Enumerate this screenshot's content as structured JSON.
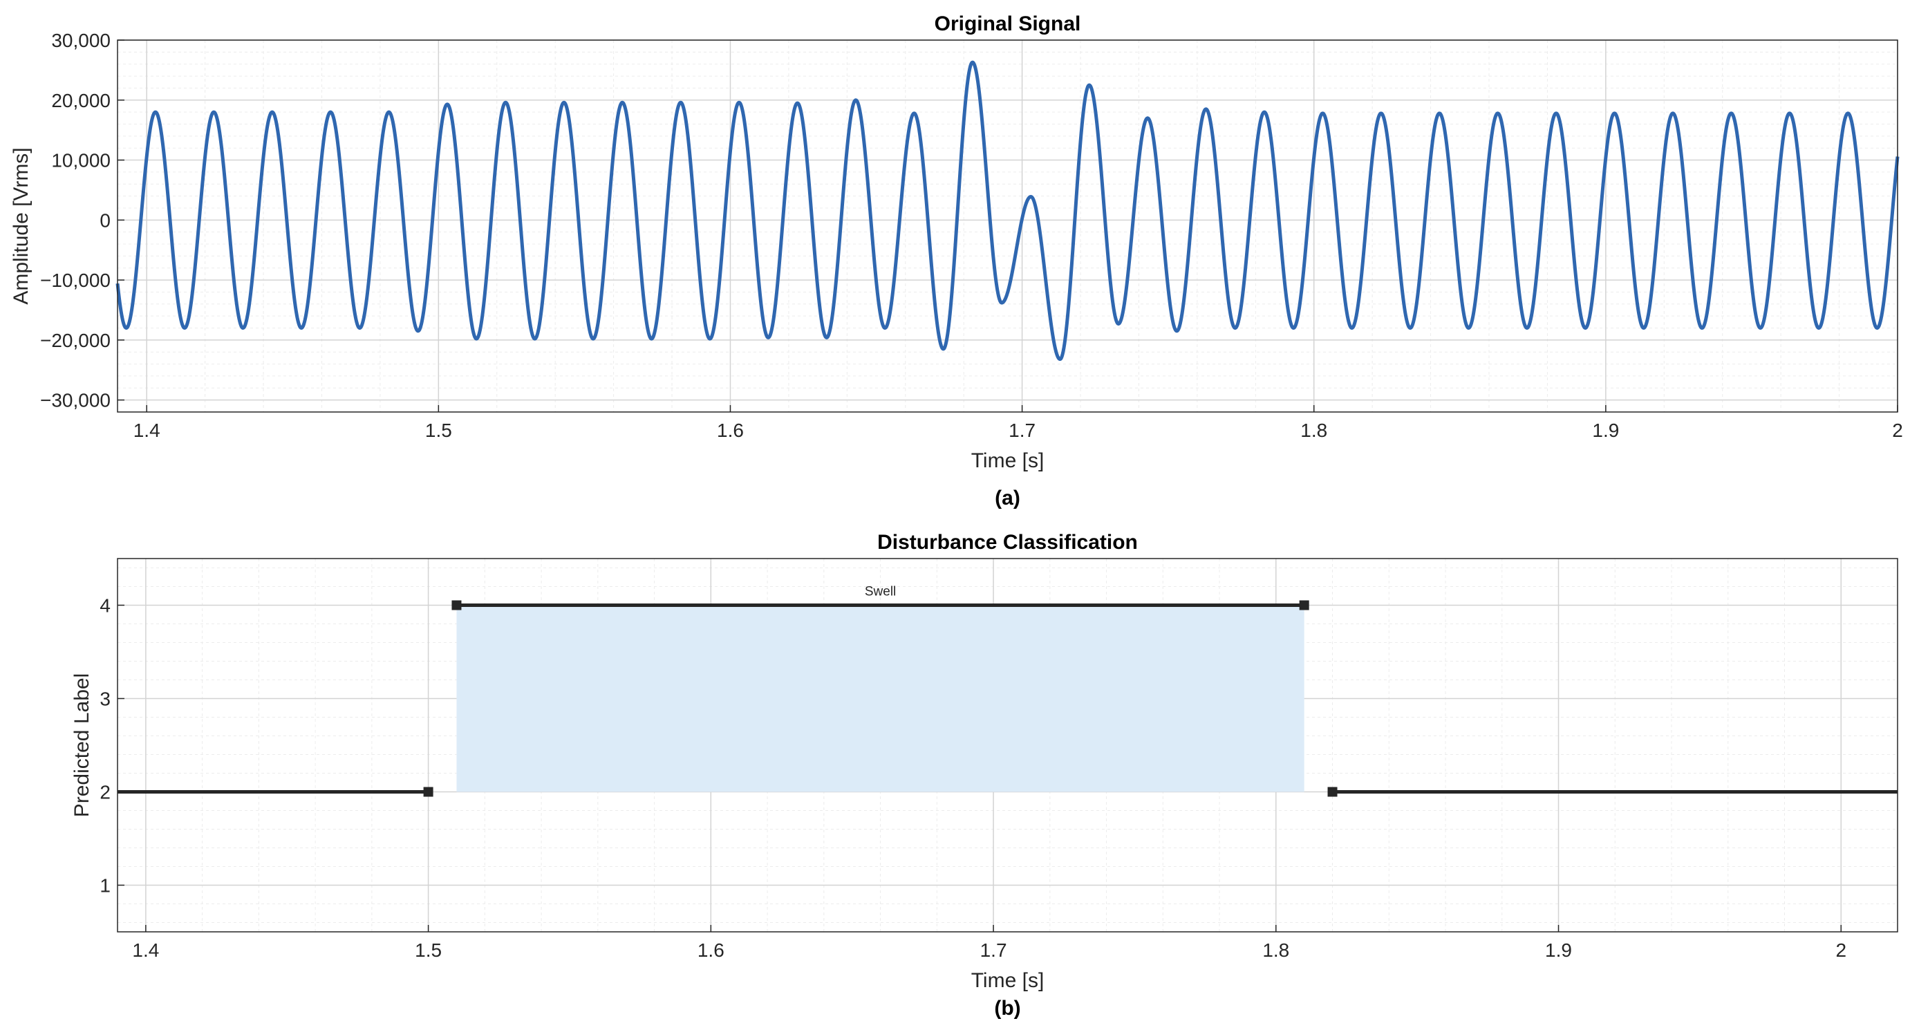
{
  "colors": {
    "signal": "#2F67B0",
    "segment": "#262626",
    "band": "#DCEBF8",
    "grid_major": "#D3D3D3",
    "grid_minor": "#ECECEC",
    "axes": "#262626"
  },
  "chart_data": [
    {
      "type": "line",
      "title": "Original Signal",
      "xlabel": "Time [s]",
      "ylabel": "Amplitude [Vrms]",
      "panel_label": "(a)",
      "xlim": [
        1.39,
        2.0
      ],
      "ylim": [
        -32000,
        30000
      ],
      "xticks": [
        1.4,
        1.5,
        1.6,
        1.7,
        1.8,
        1.9,
        2.0
      ],
      "xtick_labels": [
        "1.4",
        "1.5",
        "1.6",
        "1.7",
        "1.8",
        "1.9",
        "2"
      ],
      "yticks": [
        -30000,
        -20000,
        -10000,
        0,
        10000,
        20000,
        30000
      ],
      "ytick_labels": [
        "−30,000",
        "−20,000",
        "−10,000",
        "0",
        "10,000",
        "20,000",
        "30,000"
      ],
      "grid": true,
      "series": [
        {
          "frequency_hz": 50,
          "start_value": -8500,
          "end_value": 9000,
          "peaks": [
            [
              1.393,
              -18000
            ],
            [
              1.403,
              18000
            ],
            [
              1.413,
              -18000
            ],
            [
              1.423,
              18000
            ],
            [
              1.433,
              -18000
            ],
            [
              1.443,
              18000
            ],
            [
              1.453,
              -18000
            ],
            [
              1.463,
              18000
            ],
            [
              1.473,
              -18000
            ],
            [
              1.483,
              18000
            ],
            [
              1.493,
              -18500
            ],
            [
              1.503,
              19300
            ],
            [
              1.513,
              -19800
            ],
            [
              1.523,
              19600
            ],
            [
              1.533,
              -19800
            ],
            [
              1.543,
              19600
            ],
            [
              1.553,
              -19800
            ],
            [
              1.563,
              19600
            ],
            [
              1.573,
              -19800
            ],
            [
              1.583,
              19600
            ],
            [
              1.593,
              -19800
            ],
            [
              1.603,
              19600
            ],
            [
              1.613,
              -19600
            ],
            [
              1.623,
              19500
            ],
            [
              1.633,
              -19600
            ],
            [
              1.643,
              20000
            ],
            [
              1.653,
              -18000
            ],
            [
              1.663,
              17800
            ],
            [
              1.673,
              -21500
            ],
            [
              1.683,
              26300
            ],
            [
              1.693,
              -13800
            ],
            [
              1.703,
              3900
            ],
            [
              1.713,
              -23200
            ],
            [
              1.723,
              22500
            ],
            [
              1.733,
              -17300
            ],
            [
              1.743,
              17000
            ],
            [
              1.753,
              -18500
            ],
            [
              1.763,
              18500
            ],
            [
              1.773,
              -18000
            ],
            [
              1.783,
              18000
            ],
            [
              1.793,
              -18000
            ],
            [
              1.803,
              17800
            ],
            [
              1.813,
              -18000
            ],
            [
              1.823,
              17800
            ],
            [
              1.833,
              -18000
            ],
            [
              1.843,
              17800
            ],
            [
              1.853,
              -18000
            ],
            [
              1.863,
              17800
            ],
            [
              1.873,
              -18000
            ],
            [
              1.883,
              17800
            ],
            [
              1.893,
              -18000
            ],
            [
              1.903,
              17800
            ],
            [
              1.913,
              -18000
            ],
            [
              1.923,
              17800
            ],
            [
              1.933,
              -18000
            ],
            [
              1.943,
              17800
            ],
            [
              1.953,
              -18000
            ],
            [
              1.963,
              17800
            ],
            [
              1.973,
              -18000
            ],
            [
              1.983,
              17800
            ],
            [
              1.993,
              -18000
            ]
          ]
        }
      ]
    },
    {
      "type": "line",
      "title": "Disturbance Classification",
      "xlabel": "Time [s]",
      "ylabel": "Predicted Label",
      "panel_label": "(b)",
      "xlim": [
        1.39,
        2.02
      ],
      "ylim": [
        0.5,
        4.5
      ],
      "xticks": [
        1.4,
        1.5,
        1.6,
        1.7,
        1.8,
        1.9,
        2.0
      ],
      "xtick_labels": [
        "1.4",
        "1.5",
        "1.6",
        "1.7",
        "1.8",
        "1.9",
        "2"
      ],
      "yticks": [
        1,
        2,
        3,
        4
      ],
      "ytick_labels": [
        "1",
        "2",
        "3",
        "4"
      ],
      "grid": true,
      "segments": [
        {
          "x": [
            1.39,
            1.5
          ],
          "y": 2,
          "markers": [
            1.5
          ]
        },
        {
          "x": [
            1.51,
            1.81
          ],
          "y": 4,
          "markers": [
            1.51,
            1.81
          ]
        },
        {
          "x": [
            1.82,
            2.02
          ],
          "y": 2,
          "markers": [
            1.82
          ]
        }
      ],
      "band": {
        "x": [
          1.51,
          1.81
        ],
        "y": [
          2,
          4
        ]
      },
      "annotations": [
        {
          "text": "Swell",
          "x": 1.66,
          "y": 4
        }
      ]
    }
  ]
}
